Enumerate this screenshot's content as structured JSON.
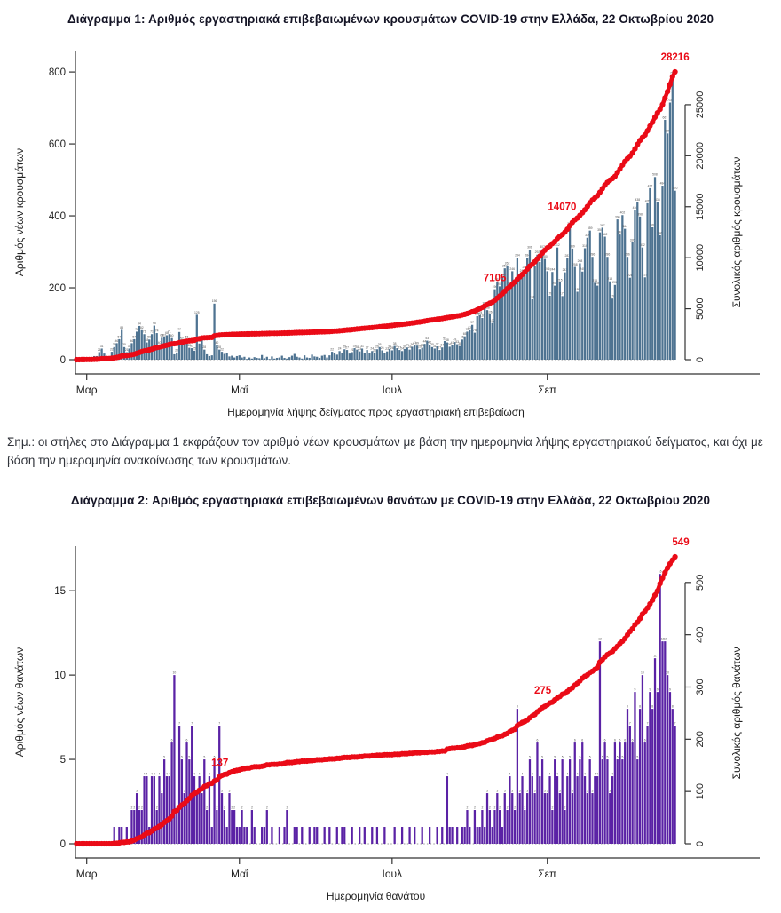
{
  "note": {
    "text": "Σημ.:  οι στήλες στο Διάγραμμα 1 εκφράζουν τον αριθμό νέων κρουσμάτων με βάση την ημερομηνία λήψης εργαστηριακού δείγματος, και όχι με βάση την ημερομηνία ανακοίνωσης των κρουσμάτων."
  },
  "colors": {
    "case_bar": "#4e7391",
    "death_bar": "#5a22a5",
    "cumulative_line": "#ea0b17",
    "axis_text": "#222222",
    "tiny_label": "#555555"
  },
  "chart_data": [
    {
      "type": "bar+line",
      "title": "Διάγραμμα 1: Αριθμός εργαστηριακά επιβεβαιωμένων κρουσμάτων COVID-19 στην Ελλάδα, 22 Οκτωβρίου 2020",
      "xlabel": "Ημερομηνία λήψης δείγματος προς εργαστηριακή επιβεβαίωση",
      "ylabel_left": "Αριθμός νέων κρουσμάτων",
      "ylabel_right": "Συνολικός αριθμός κρουσμάτων",
      "x_ticks": {
        "indices": [
          4,
          65,
          126,
          188
        ],
        "labels": [
          "Μαρ",
          "Μαΐ",
          "Ιουλ",
          "Σεπ"
        ]
      },
      "left_ticks": [
        0,
        200,
        400,
        600,
        800
      ],
      "right_ticks": [
        0,
        5000,
        10000,
        15000,
        20000,
        25000
      ],
      "ylim_left": [
        0,
        820
      ],
      "final_cumulative": 28216,
      "bar_color": "#4e7391",
      "line_color": "#ea0b17",
      "annotations": [
        {
          "text": "7105",
          "value": 7105,
          "position": "line"
        },
        {
          "text": "14070",
          "value": 14070,
          "position": "line"
        },
        {
          "text": "28216",
          "position": "end"
        }
      ],
      "daily": [
        1,
        1,
        3,
        4,
        7,
        3,
        3,
        10,
        10,
        21,
        31,
        17,
        4,
        5,
        22,
        35,
        46,
        57,
        83,
        35,
        21,
        31,
        46,
        57,
        78,
        94,
        82,
        71,
        48,
        56,
        71,
        95,
        74,
        40,
        61,
        62,
        68,
        71,
        60,
        15,
        20,
        77,
        52,
        47,
        56,
        33,
        32,
        25,
        125,
        45,
        56,
        28,
        15,
        10,
        12,
        156,
        40,
        28,
        22,
        16,
        19,
        9,
        11,
        6,
        10,
        12,
        6,
        8,
        2,
        6,
        3,
        7,
        5,
        4,
        13,
        4,
        8,
        2,
        9,
        3,
        5,
        6,
        11,
        5,
        3,
        7,
        11,
        16,
        8,
        6,
        3,
        12,
        6,
        5,
        14,
        9,
        8,
        5,
        11,
        13,
        6,
        12,
        22,
        19,
        14,
        24,
        18,
        29,
        27,
        17,
        21,
        32,
        28,
        23,
        31,
        19,
        27,
        18,
        24,
        20,
        29,
        35,
        26,
        19,
        23,
        30,
        26,
        38,
        32,
        27,
        24,
        30,
        34,
        28,
        36,
        41,
        39,
        29,
        33,
        44,
        53,
        42,
        35,
        31,
        37,
        27,
        34,
        52,
        48,
        36,
        41,
        49,
        43,
        38,
        56,
        65,
        78,
        82,
        97,
        75,
        121,
        124,
        116,
        151,
        138,
        126,
        102,
        196,
        217,
        204,
        230,
        254,
        262,
        207,
        246,
        212,
        284,
        228,
        241,
        250,
        284,
        306,
        168,
        261,
        292,
        272,
        307,
        280,
        246,
        178,
        244,
        206,
        312,
        215,
        177,
        243,
        283,
        372,
        309,
        258,
        189,
        268,
        245,
        310,
        339,
        359,
        286,
        214,
        206,
        354,
        367,
        342,
        286,
        218,
        170,
        208,
        390,
        348,
        402,
        364,
        286,
        228,
        326,
        416,
        438,
        398,
        312,
        229,
        435,
        477,
        368,
        508,
        438,
        346,
        484,
        667,
        629,
        715,
        790,
        470
      ]
    },
    {
      "type": "bar+line",
      "title": "Διάγραμμα 2: Αριθμός εργαστηριακά επιβεβαιωμένων θανάτων με COVID-19 στην Ελλάδα, 22 Οκτωβρίου 2020",
      "xlabel": "Ημερομηνία θανάτου",
      "ylabel_left": "Αριθμός νέων θανάτων",
      "ylabel_right": "Συνολικός αριθμός θανάτων",
      "x_ticks": {
        "indices": [
          4,
          65,
          126,
          188
        ],
        "labels": [
          "Μαρ",
          "Μαΐ",
          "Ιουλ",
          "Σεπ"
        ]
      },
      "left_ticks": [
        0,
        5,
        10,
        15
      ],
      "right_ticks": [
        0,
        100,
        200,
        300,
        400,
        500
      ],
      "ylim_left": [
        0,
        16.8
      ],
      "final_cumulative": 549,
      "bar_color": "#5a22a5",
      "line_color": "#ea0b17",
      "annotations": [
        {
          "text": "137",
          "value": 137,
          "position": "line"
        },
        {
          "text": "275",
          "value": 275,
          "position": "line"
        },
        {
          "text": "549",
          "position": "end"
        }
      ],
      "daily": [
        0,
        0,
        0,
        0,
        0,
        0,
        0,
        0,
        0,
        0,
        0,
        0,
        0,
        0,
        0,
        1,
        0,
        1,
        1,
        0,
        1,
        0,
        2,
        2,
        3,
        2,
        2,
        4,
        4,
        1,
        4,
        4,
        2,
        4,
        3,
        5,
        4,
        4,
        6,
        10,
        2,
        7,
        5,
        3,
        6,
        5,
        7,
        4,
        3,
        4,
        3,
        5,
        2,
        4,
        1,
        5,
        2,
        7,
        3,
        2,
        1,
        3,
        2,
        2,
        1,
        1,
        2,
        1,
        1,
        0,
        2,
        1,
        0,
        0,
        1,
        1,
        2,
        0,
        1,
        0,
        0,
        1,
        0,
        1,
        2,
        0,
        0,
        1,
        1,
        0,
        1,
        0,
        0,
        1,
        0,
        1,
        1,
        0,
        0,
        1,
        0,
        1,
        0,
        0,
        1,
        0,
        1,
        1,
        0,
        0,
        1,
        0,
        0,
        1,
        0,
        1,
        0,
        0,
        1,
        0,
        1,
        0,
        0,
        1,
        0,
        0,
        0,
        1,
        0,
        0,
        1,
        0,
        0,
        1,
        0,
        1,
        0,
        0,
        1,
        0,
        0,
        1,
        0,
        0,
        1,
        0,
        1,
        0,
        4,
        1,
        1,
        0,
        1,
        0,
        1,
        1,
        2,
        1,
        0,
        2,
        1,
        1,
        2,
        1,
        3,
        2,
        1,
        2,
        3,
        2,
        1,
        3,
        2,
        4,
        3,
        2,
        8,
        3,
        4,
        2,
        3,
        5,
        4,
        3,
        6,
        4,
        5,
        3,
        3,
        4,
        2,
        5,
        4,
        3,
        5,
        2,
        4,
        5,
        3,
        6,
        4,
        5,
        6,
        4,
        3,
        5,
        3,
        4,
        4,
        12,
        5,
        6,
        5,
        3,
        4,
        6,
        5,
        6,
        5,
        6,
        8,
        7,
        6,
        9,
        5,
        8,
        10,
        6,
        7,
        9,
        8,
        11,
        9,
        16,
        12,
        12,
        10,
        9,
        8,
        7
      ]
    }
  ]
}
